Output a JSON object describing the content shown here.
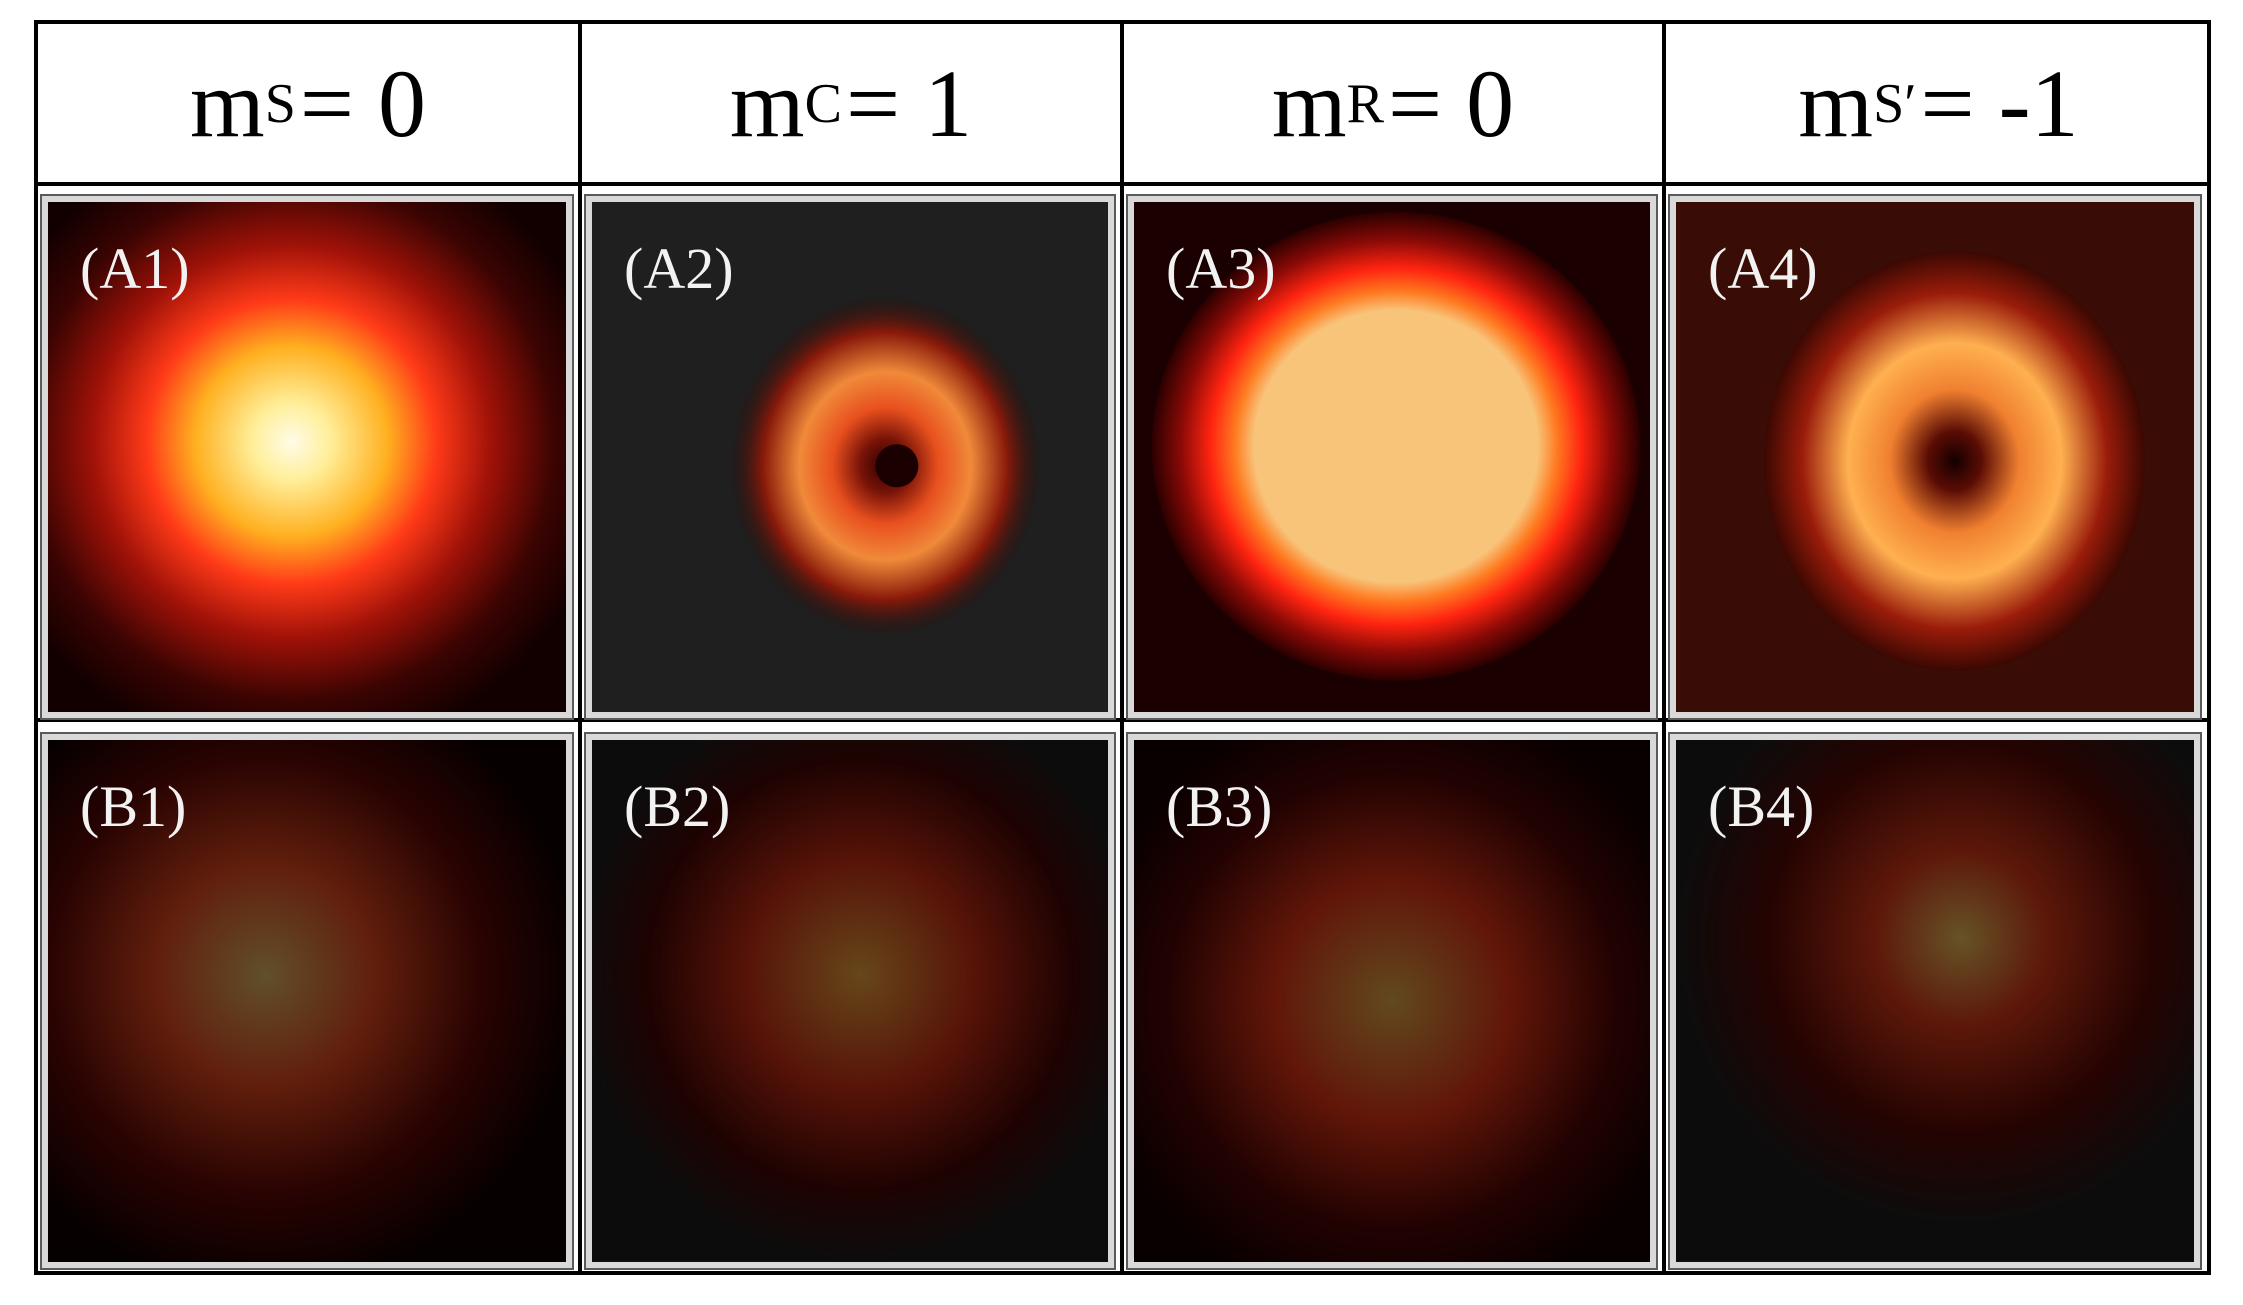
{
  "headers": [
    {
      "symbol": "m",
      "subscript": "S",
      "value": "= 0"
    },
    {
      "symbol": "m",
      "subscript": "C",
      "value": "= 1"
    },
    {
      "symbol": "m",
      "subscript": "R",
      "value": "= 0"
    },
    {
      "symbol": "m",
      "subscript": "S′",
      "value": " = -1"
    }
  ],
  "panels": {
    "a1": "(A1)",
    "a2": "(A2)",
    "a3": "(A3)",
    "a4": "(A4)",
    "b1": "(B1)",
    "b2": "(B2)",
    "b3": "(B3)",
    "b4": "(B4)"
  },
  "colors": {
    "background": "#ffffff",
    "border": "#000000",
    "hot_core": "#fff6c8",
    "mid": "#ff3a1a",
    "dark": "#1e1e1e"
  }
}
